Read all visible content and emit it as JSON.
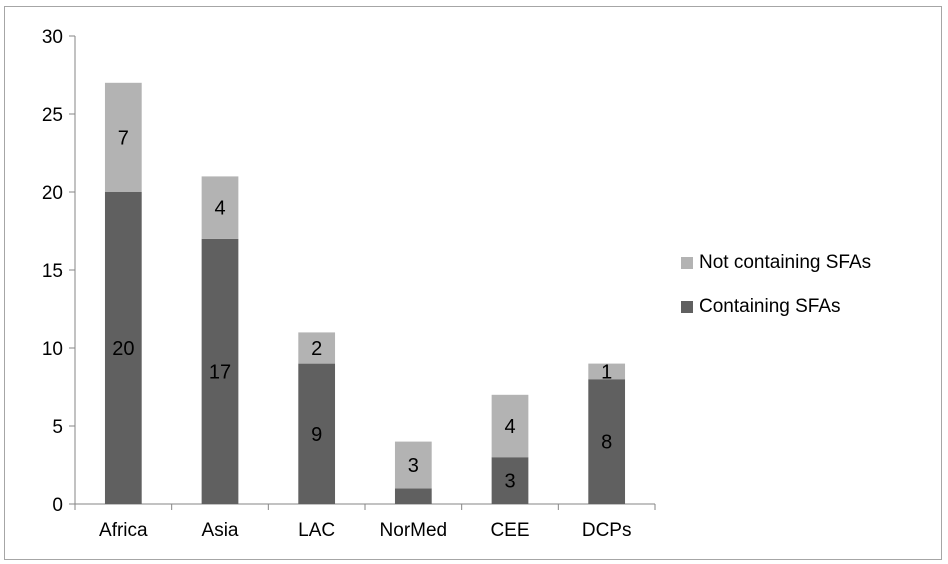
{
  "chart_data": {
    "type": "bar",
    "stacked": true,
    "categories": [
      "Africa",
      "Asia",
      "LAC",
      "NorMed",
      "CEE",
      "DCPs"
    ],
    "series": [
      {
        "name": "Containing SFAs",
        "values": [
          20,
          17,
          9,
          1,
          3,
          8
        ],
        "labels": [
          "20",
          "17",
          "9",
          "",
          "3",
          "8"
        ],
        "color": "#606060"
      },
      {
        "name": "Not containing SFAs",
        "values": [
          7,
          4,
          2,
          3,
          4,
          1
        ],
        "labels": [
          "7",
          "4",
          "2",
          "3",
          "4",
          "1"
        ],
        "color": "#b3b3b3"
      }
    ],
    "ylim": [
      0,
      30
    ],
    "yticks": [
      "0",
      "5",
      "10",
      "15",
      "20",
      "25",
      "30"
    ],
    "grid": false,
    "legend_position": "right"
  }
}
